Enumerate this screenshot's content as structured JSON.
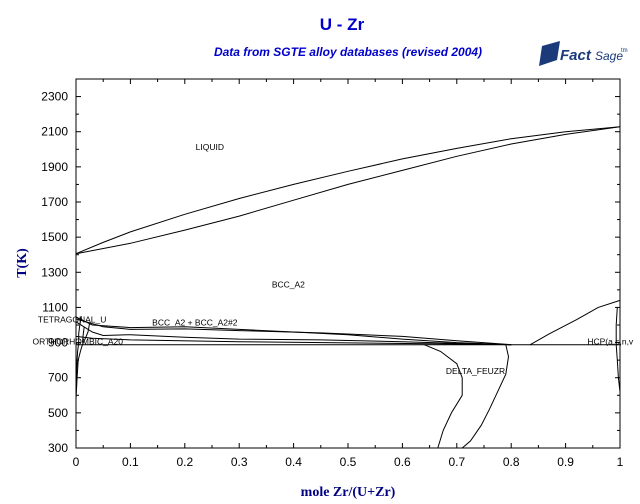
{
  "logo": {
    "part1": "Fact",
    "part2": "Sage",
    "tm": "tm"
  },
  "chart_data": {
    "type": "line",
    "title": "U - Zr",
    "subtitle": "Data from SGTE alloy databases (revised 2004)",
    "xlabel": "mole Zr/(U+Zr)",
    "ylabel": "T(K)",
    "xlim": [
      0,
      1
    ],
    "ylim": [
      300,
      2400
    ],
    "xticks": [
      "0",
      "0.1",
      "0.2",
      "0.3",
      "0.4",
      "0.5",
      "0.6",
      "0.7",
      "0.8",
      "0.9",
      "1"
    ],
    "yticks": [
      "300",
      "500",
      "700",
      "900",
      "1100",
      "1300",
      "1500",
      "1700",
      "1900",
      "2100",
      "2300"
    ],
    "grid": false,
    "region_labels": [
      {
        "text": "LIQUID",
        "x": 0.22,
        "y": 1995
      },
      {
        "text": "BCC_A2",
        "x": 0.36,
        "y": 1213
      },
      {
        "text": "TETRAGONAL_U",
        "x": -0.07,
        "y": 1013
      },
      {
        "text": "BCC_A2 + BCC_A2#2",
        "x": 0.14,
        "y": 998
      },
      {
        "text": "ORTHORHOMBIC_A20",
        "x": -0.08,
        "y": 890
      },
      {
        "text": "DELTA_FEUZR",
        "x": 0.68,
        "y": 722
      },
      {
        "text": "HCP(a,s,n,v",
        "x": 0.94,
        "y": 890
      }
    ],
    "series": [
      {
        "points": [
          [
            0,
            1406
          ],
          [
            0.05,
            1470
          ],
          [
            0.1,
            1530
          ],
          [
            0.2,
            1630
          ],
          [
            0.3,
            1720
          ],
          [
            0.4,
            1800
          ],
          [
            0.5,
            1875
          ],
          [
            0.6,
            1945
          ],
          [
            0.7,
            2005
          ],
          [
            0.8,
            2060
          ],
          [
            0.9,
            2100
          ],
          [
            1,
            2128
          ]
        ]
      },
      {
        "points": [
          [
            0,
            1406
          ],
          [
            0.1,
            1465
          ],
          [
            0.2,
            1540
          ],
          [
            0.3,
            1620
          ],
          [
            0.4,
            1710
          ],
          [
            0.5,
            1800
          ],
          [
            0.6,
            1880
          ],
          [
            0.7,
            1960
          ],
          [
            0.8,
            2030
          ],
          [
            0.9,
            2085
          ],
          [
            1,
            2128
          ]
        ]
      },
      {
        "points": [
          [
            0,
            1045
          ],
          [
            0.03,
            1000
          ],
          [
            0.1,
            985
          ],
          [
            0.2,
            990
          ],
          [
            0.3,
            975
          ],
          [
            0.4,
            960
          ],
          [
            0.5,
            945
          ],
          [
            0.6,
            920
          ],
          [
            0.7,
            900
          ],
          [
            0.8,
            888
          ]
        ]
      },
      {
        "points": [
          [
            0,
            1035
          ],
          [
            0.05,
            990
          ],
          [
            0.1,
            975
          ],
          [
            0.2,
            978
          ],
          [
            0.3,
            968
          ],
          [
            0.45,
            955
          ],
          [
            0.6,
            935
          ],
          [
            0.7,
            910
          ],
          [
            0.8,
            888
          ]
        ]
      },
      {
        "points": [
          [
            0,
            1018
          ],
          [
            0.03,
            960
          ],
          [
            0.05,
            940
          ],
          [
            0.1,
            945
          ],
          [
            0.2,
            930
          ],
          [
            0.3,
            920
          ],
          [
            0.45,
            915
          ],
          [
            0.6,
            905
          ],
          [
            0.7,
            895
          ],
          [
            0.8,
            888
          ]
        ]
      },
      {
        "points": [
          [
            0,
            935
          ],
          [
            0.03,
            925
          ],
          [
            0.1,
            915
          ],
          [
            0.3,
            905
          ],
          [
            0.5,
            898
          ],
          [
            0.7,
            892
          ],
          [
            0.8,
            888
          ]
        ]
      },
      {
        "points": [
          [
            0,
            888
          ],
          [
            1,
            888
          ]
        ]
      },
      {
        "points": [
          [
            0.01,
            1050
          ],
          [
            0.007,
            1000
          ],
          [
            0.005,
            950
          ],
          [
            0.005,
            900
          ],
          [
            0.003,
            850
          ],
          [
            0.002,
            800
          ],
          [
            0.001,
            700
          ],
          [
            0,
            600
          ]
        ]
      },
      {
        "points": [
          [
            0.025,
            1010
          ],
          [
            0.022,
            960
          ],
          [
            0.018,
            930
          ],
          [
            0.012,
            890
          ],
          [
            0.008,
            850
          ],
          [
            0.004,
            800
          ],
          [
            0.002,
            700
          ],
          [
            0,
            580
          ]
        ]
      },
      {
        "points": [
          [
            0.015,
            990
          ],
          [
            0.013,
            940
          ],
          [
            0.012,
            900
          ]
        ]
      },
      {
        "points": [
          [
            0.64,
            888
          ],
          [
            0.67,
            850
          ],
          [
            0.7,
            780
          ],
          [
            0.71,
            700
          ],
          [
            0.71,
            600
          ],
          [
            0.69,
            500
          ],
          [
            0.675,
            400
          ],
          [
            0.665,
            300
          ]
        ]
      },
      {
        "points": [
          [
            0.79,
            888
          ],
          [
            0.795,
            820
          ],
          [
            0.79,
            720
          ],
          [
            0.775,
            620
          ],
          [
            0.76,
            520
          ],
          [
            0.745,
            430
          ],
          [
            0.725,
            340
          ],
          [
            0.71,
            300
          ]
        ]
      },
      {
        "points": [
          [
            0.835,
            888
          ],
          [
            0.87,
            950
          ],
          [
            0.92,
            1030
          ],
          [
            0.96,
            1100
          ],
          [
            1,
            1140
          ]
        ]
      },
      {
        "points": [
          [
            0.995,
            1100
          ],
          [
            0.993,
            1000
          ],
          [
            0.993,
            888
          ],
          [
            0.995,
            800
          ],
          [
            0.997,
            700
          ],
          [
            1,
            620
          ]
        ]
      }
    ]
  }
}
